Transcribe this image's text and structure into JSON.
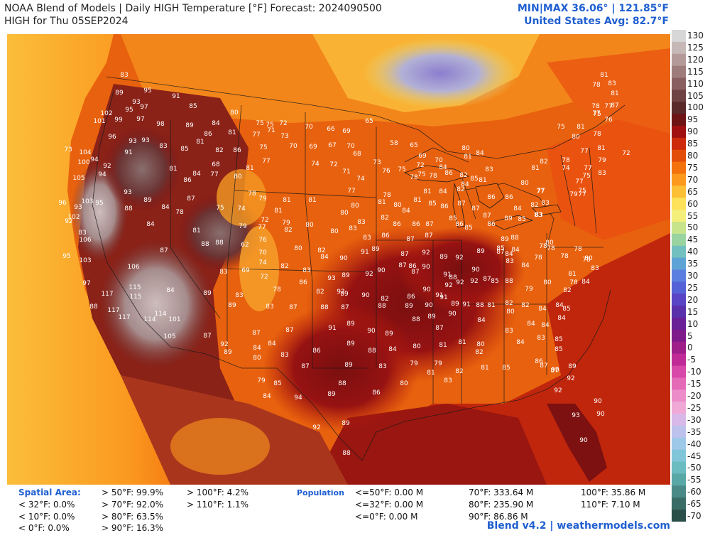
{
  "header": {
    "title_line1": "NOAA Blend of Models | Daily HIGH Temperature [°F] Forecast: 2024090500",
    "title_line2": "HIGH for Thu 05SEP2024",
    "minmax": "MIN|MAX 36.06° | 121.85°F",
    "us_avg": "United States Avg: 82.7°F"
  },
  "colorbar": {
    "labels": [
      "130",
      "125",
      "120",
      "115",
      "110",
      "105",
      "100",
      "95",
      "90",
      "85",
      "80",
      "75",
      "70",
      "65",
      "60",
      "55",
      "50",
      "45",
      "40",
      "35",
      "30",
      "25",
      "20",
      "15",
      "10",
      "5",
      "0",
      "-5",
      "-10",
      "-15",
      "-20",
      "-25",
      "-30",
      "-35",
      "-40",
      "-45",
      "-50",
      "-55",
      "-60",
      "-65",
      "-70"
    ],
    "colors": [
      "#d7d7d7",
      "#c7b8b8",
      "#b59a9a",
      "#9e7c7c",
      "#8a5f5f",
      "#6f4343",
      "#5a2a2a",
      "#6e1414",
      "#a01010",
      "#cc2a0a",
      "#e34d0a",
      "#f4720e",
      "#fb9a1e",
      "#fcc036",
      "#fce15a",
      "#f3ef7a",
      "#c8e48a",
      "#98d3a0",
      "#72c0c0",
      "#5ea3d6",
      "#5a7fe0",
      "#5561d6",
      "#5844c4",
      "#5a2faa",
      "#6a2096",
      "#7e1a8a",
      "#a01e8a",
      "#c02a96",
      "#d848a8",
      "#e46ab8",
      "#ec8cc8",
      "#f0a8d6",
      "#d8b8e8",
      "#bcc2ec",
      "#9ec8e8",
      "#80c6d8",
      "#6abcc0",
      "#5aa8a6",
      "#4a8a86",
      "#3a6c66",
      "#2a4e48"
    ]
  },
  "stats": {
    "spatial_label": "Spatial Area:",
    "population_label": "Population",
    "spatial": [
      "< 32°F: 0.0%",
      "< 10°F: 0.0%",
      "< 0°F: 0.0%",
      "> 50°F: 99.9%",
      "> 70°F: 92.0%",
      "> 80°F: 63.5%",
      "> 90°F: 16.3%",
      "> 100°F: 4.2%",
      "> 110°F: 1.1%"
    ],
    "population": [
      "<=50°F: 0.00 M",
      "<=32°F: 0.00 M",
      "<=0°F: 0.00 M",
      "70°F: 333.64 M",
      "80°F: 235.90 M",
      "90°F: 86.86 M",
      "100°F: 35.86 M",
      "110°F: 7.10 M"
    ]
  },
  "footer": "Blend v4.2 | weathermodels.com",
  "map_labels": [
    [
      "83",
      175,
      108
    ],
    [
      "95",
      208,
      130
    ],
    [
      "93",
      192,
      146
    ],
    [
      "89",
      168,
      133
    ],
    [
      "91",
      248,
      138
    ],
    [
      "85",
      272,
      152
    ],
    [
      "80",
      330,
      161
    ],
    [
      "95",
      182,
      157
    ],
    [
      "97",
      203,
      153
    ],
    [
      "102",
      150,
      162
    ],
    [
      "101",
      140,
      173
    ],
    [
      "99",
      167,
      171
    ],
    [
      "97",
      198,
      170
    ],
    [
      "98",
      226,
      177
    ],
    [
      "96",
      158,
      195
    ],
    [
      "93",
      187,
      201
    ],
    [
      "93",
      205,
      200
    ],
    [
      "91",
      181,
      217
    ],
    [
      "83",
      230,
      208
    ],
    [
      "85",
      260,
      212
    ],
    [
      "89",
      267,
      179
    ],
    [
      "86",
      293,
      191
    ],
    [
      "81",
      282,
      202
    ],
    [
      "84",
      304,
      176
    ],
    [
      "81",
      327,
      189
    ],
    [
      "75",
      366,
      176
    ],
    [
      "75",
      380,
      178
    ],
    [
      "72",
      399,
      176
    ],
    [
      "71",
      382,
      186
    ],
    [
      "70",
      435,
      181
    ],
    [
      "66",
      466,
      184
    ],
    [
      "69",
      488,
      187
    ],
    [
      "77",
      361,
      192
    ],
    [
      "73",
      401,
      194
    ],
    [
      "82",
      309,
      214
    ],
    [
      "86",
      334,
      214
    ],
    [
      "75",
      371,
      210
    ],
    [
      "70",
      413,
      208
    ],
    [
      "69",
      441,
      209
    ],
    [
      "67",
      468,
      207
    ],
    [
      "70",
      494,
      208
    ],
    [
      "68",
      503,
      219
    ],
    [
      "65",
      520,
      173
    ],
    [
      "58",
      555,
      204
    ],
    [
      "65",
      583,
      207
    ],
    [
      "73",
      96,
      213
    ],
    [
      "104",
      120,
      217
    ],
    [
      "100",
      118,
      231
    ],
    [
      "94",
      133,
      227
    ],
    [
      "92",
      151,
      236
    ],
    [
      "94",
      144,
      248
    ],
    [
      "105",
      111,
      253
    ],
    [
      "81",
      244,
      240
    ],
    [
      "84",
      277,
      247
    ],
    [
      "77",
      302,
      248
    ],
    [
      "68",
      304,
      234
    ],
    [
      "80",
      335,
      251
    ],
    [
      "81",
      352,
      239
    ],
    [
      "77",
      375,
      229
    ],
    [
      "74",
      444,
      233
    ],
    [
      "72",
      470,
      234
    ],
    [
      "71",
      488,
      244
    ],
    [
      "74",
      508,
      254
    ],
    [
      "73",
      531,
      231
    ],
    [
      "76",
      544,
      243
    ],
    [
      "75",
      566,
      241
    ],
    [
      "72",
      592,
      235
    ],
    [
      "75",
      594,
      248
    ],
    [
      "69",
      595,
      222
    ],
    [
      "78",
      583,
      252
    ],
    [
      "70",
      618,
      228
    ],
    [
      "96",
      88,
      288
    ],
    [
      "93",
      110,
      294
    ],
    [
      "103",
      123,
      286
    ],
    [
      "95",
      140,
      288
    ],
    [
      "102",
      104,
      308
    ],
    [
      "92",
      97,
      314
    ],
    [
      "93",
      180,
      273
    ],
    [
      "89",
      208,
      284
    ],
    [
      "88",
      181,
      296
    ],
    [
      "84",
      233,
      294
    ],
    [
      "86",
      264,
      256
    ],
    [
      "87",
      269,
      282
    ],
    [
      "84",
      212,
      318
    ],
    [
      "78",
      253,
      301
    ],
    [
      "75",
      310,
      295
    ],
    [
      "74",
      340,
      296
    ],
    [
      "78",
      355,
      275
    ],
    [
      "79",
      370,
      282
    ],
    [
      "81",
      404,
      284
    ],
    [
      "81",
      440,
      284
    ],
    [
      "77",
      495,
      271
    ],
    [
      "80",
      485,
      302
    ],
    [
      "80",
      500,
      292
    ],
    [
      "78",
      545,
      277
    ],
    [
      "81",
      602,
      272
    ],
    [
      "84",
      624,
      272
    ],
    [
      "82",
      649,
      269
    ],
    [
      "84",
      655,
      262
    ],
    [
      "85",
      668,
      254
    ],
    [
      "81",
      680,
      256
    ],
    [
      "83",
      689,
      241
    ],
    [
      "80",
      656,
      211
    ],
    [
      "84",
      676,
      218
    ],
    [
      "81",
      659,
      223
    ],
    [
      "82",
      653,
      249
    ],
    [
      "84",
      624,
      238
    ],
    [
      "86",
      632,
      246
    ],
    [
      "78",
      610,
      250
    ],
    [
      "81",
      538,
      287
    ],
    [
      "80",
      560,
      291
    ],
    [
      "84",
      572,
      299
    ],
    [
      "81",
      588,
      284
    ],
    [
      "85",
      609,
      289
    ],
    [
      "86",
      626,
      293
    ],
    [
      "87",
      650,
      289
    ],
    [
      "87",
      670,
      296
    ],
    [
      "86",
      692,
      280
    ],
    [
      "86",
      717,
      280
    ],
    [
      "84",
      729,
      296
    ],
    [
      "82",
      753,
      291
    ],
    [
      "83",
      758,
      305
    ],
    [
      "81",
      754,
      239
    ],
    [
      "82",
      766,
      230
    ],
    [
      "78",
      797,
      228
    ],
    [
      "74",
      797,
      239
    ],
    [
      "80",
      739,
      260
    ],
    [
      "77",
      761,
      272
    ],
    [
      "77",
      762,
      271
    ],
    [
      "83",
      116,
      330
    ],
    [
      "106",
      120,
      340
    ],
    [
      "81",
      277,
      327
    ],
    [
      "88",
      289,
      346
    ],
    [
      "88",
      309,
      344
    ],
    [
      "79",
      342,
      321
    ],
    [
      "62",
      345,
      347
    ],
    [
      "77",
      369,
      322
    ],
    [
      "72",
      373,
      312
    ],
    [
      "79",
      403,
      316
    ],
    [
      "82",
      406,
      326
    ],
    [
      "81",
      392,
      299
    ],
    [
      "80",
      436,
      319
    ],
    [
      "80",
      471,
      328
    ],
    [
      "83",
      497,
      324
    ],
    [
      "83",
      509,
      315
    ],
    [
      "82",
      542,
      309
    ],
    [
      "83",
      517,
      337
    ],
    [
      "86",
      543,
      334
    ],
    [
      "87",
      578,
      339
    ],
    [
      "87",
      604,
      334
    ],
    [
      "86",
      559,
      318
    ],
    [
      "86",
      586,
      318
    ],
    [
      "87",
      605,
      318
    ],
    [
      "85",
      638,
      310
    ],
    [
      "86",
      647,
      318
    ],
    [
      "85",
      660,
      323
    ],
    [
      "87",
      686,
      306
    ],
    [
      "86",
      692,
      318
    ],
    [
      "89",
      716,
      310
    ],
    [
      "85",
      735,
      311
    ],
    [
      "83",
      759,
      305
    ],
    [
      "89",
      711,
      339
    ],
    [
      "88",
      725,
      337
    ],
    [
      "95",
      94,
      363
    ],
    [
      "103",
      120,
      369
    ],
    [
      "87",
      231,
      355
    ],
    [
      "83",
      315,
      385
    ],
    [
      "76",
      370,
      340
    ],
    [
      "70",
      370,
      358
    ],
    [
      "74",
      370,
      372
    ],
    [
      "69",
      346,
      383
    ],
    [
      "72",
      372,
      392
    ],
    [
      "82",
      401,
      377
    ],
    [
      "80",
      420,
      352
    ],
    [
      "82",
      453,
      355
    ],
    [
      "84",
      457,
      364
    ],
    [
      "90",
      484,
      366
    ],
    [
      "91",
      514,
      357
    ],
    [
      "89",
      529,
      353
    ],
    [
      "87",
      570,
      360
    ],
    [
      "92",
      600,
      358
    ],
    [
      "89",
      625,
      364
    ],
    [
      "92",
      647,
      365
    ],
    [
      "90",
      670,
      382
    ],
    [
      "89",
      677,
      356
    ],
    [
      "87",
      705,
      357
    ],
    [
      "85",
      705,
      352
    ],
    [
      "84",
      717,
      360
    ],
    [
      "84",
      726,
      354
    ],
    [
      "83",
      718,
      370
    ],
    [
      "84",
      740,
      376
    ],
    [
      "78",
      758,
      365
    ],
    [
      "78",
      765,
      349
    ],
    [
      "80",
      774,
      344
    ],
    [
      "78",
      776,
      352
    ],
    [
      "78",
      795,
      363
    ],
    [
      "78",
      814,
      353
    ],
    [
      "78",
      826,
      368
    ],
    [
      "80",
      829,
      366
    ],
    [
      "83",
      838,
      380
    ],
    [
      "97",
      122,
      401
    ],
    [
      "106",
      188,
      378
    ],
    [
      "115",
      190,
      407
    ],
    [
      "115",
      191,
      420
    ],
    [
      "117",
      151,
      416
    ],
    [
      "88",
      132,
      434
    ],
    [
      "117",
      160,
      439
    ],
    [
      "117",
      175,
      449
    ],
    [
      "114",
      226,
      444
    ],
    [
      "114",
      211,
      452
    ],
    [
      "101",
      246,
      452
    ],
    [
      "105",
      239,
      476
    ],
    [
      "84",
      240,
      411
    ],
    [
      "89",
      292,
      415
    ],
    [
      "89",
      327,
      432
    ],
    [
      "83",
      337,
      418
    ],
    [
      "78",
      390,
      410
    ],
    [
      "83",
      380,
      434
    ],
    [
      "87",
      413,
      435
    ],
    [
      "83",
      432,
      383
    ],
    [
      "93",
      467,
      394
    ],
    [
      "86",
      427,
      400
    ],
    [
      "89",
      487,
      390
    ],
    [
      "92",
      520,
      388
    ],
    [
      "90",
      537,
      383
    ],
    [
      "87",
      567,
      376
    ],
    [
      "86",
      581,
      377
    ],
    [
      "90",
      600,
      378
    ],
    [
      "87",
      585,
      385
    ],
    [
      "91",
      630,
      389
    ],
    [
      "88",
      638,
      393
    ],
    [
      "92",
      648,
      400
    ],
    [
      "92",
      668,
      398
    ],
    [
      "87",
      686,
      395
    ],
    [
      "85",
      697,
      398
    ],
    [
      "88",
      717,
      398
    ],
    [
      "80",
      771,
      400
    ],
    [
      "81",
      806,
      388
    ],
    [
      "78",
      808,
      400
    ],
    [
      "82",
      799,
      411
    ],
    [
      "84",
      825,
      399
    ],
    [
      "82",
      451,
      413
    ],
    [
      "89",
      485,
      416
    ],
    [
      "92",
      480,
      413
    ],
    [
      "90",
      515,
      418
    ],
    [
      "82",
      542,
      423
    ],
    [
      "86",
      579,
      420
    ],
    [
      "90",
      601,
      410
    ],
    [
      "91",
      619,
      418
    ],
    [
      "91",
      625,
      421
    ],
    [
      "89",
      641,
      430
    ],
    [
      "92",
      632,
      404
    ],
    [
      "88",
      538,
      433
    ],
    [
      "88",
      457,
      435
    ],
    [
      "87",
      486,
      435
    ],
    [
      "89",
      576,
      433
    ],
    [
      "90",
      604,
      432
    ],
    [
      "91",
      657,
      431
    ],
    [
      "88",
      676,
      432
    ],
    [
      "81",
      692,
      432
    ],
    [
      "82",
      717,
      429
    ],
    [
      "82",
      740,
      432
    ],
    [
      "84",
      764,
      437
    ],
    [
      "84",
      788,
      432
    ],
    [
      "85",
      798,
      437
    ],
    [
      "79",
      745,
      409
    ],
    [
      "80",
      719,
      441
    ],
    [
      "87",
      361,
      471
    ],
    [
      "87",
      408,
      467
    ],
    [
      "91",
      468,
      464
    ],
    [
      "89",
      494,
      458
    ],
    [
      "90",
      523,
      468
    ],
    [
      "89",
      548,
      472
    ],
    [
      "88",
      586,
      452
    ],
    [
      "89",
      608,
      448
    ],
    [
      "90",
      637,
      444
    ],
    [
      "87",
      619,
      464
    ],
    [
      "84",
      678,
      453
    ],
    [
      "83",
      717,
      468
    ],
    [
      "84",
      748,
      458
    ],
    [
      "84",
      768,
      460
    ],
    [
      "84",
      791,
      450
    ],
    [
      "83",
      762,
      478
    ],
    [
      "85",
      787,
      480
    ],
    [
      "84",
      383,
      486
    ],
    [
      "84",
      362,
      492
    ],
    [
      "92",
      316,
      487
    ],
    [
      "87",
      292,
      475
    ],
    [
      "89",
      321,
      498
    ],
    [
      "80",
      362,
      506
    ],
    [
      "83",
      401,
      502
    ],
    [
      "86",
      446,
      496
    ],
    [
      "89",
      494,
      486
    ],
    [
      "88",
      524,
      496
    ],
    [
      "84",
      553,
      494
    ],
    [
      "80",
      587,
      490
    ],
    [
      "81",
      624,
      488
    ],
    [
      "81",
      651,
      484
    ],
    [
      "80",
      677,
      487
    ],
    [
      "84",
      733,
      484
    ],
    [
      "85",
      787,
      494
    ],
    [
      "86",
      759,
      511
    ],
    [
      "87",
      766,
      517
    ],
    [
      "87",
      781,
      524
    ],
    [
      "90",
      782,
      523
    ],
    [
      "89",
      806,
      518
    ],
    [
      "92",
      804,
      535
    ],
    [
      "82",
      647,
      525
    ],
    [
      "81",
      683,
      520
    ],
    [
      "85",
      713,
      520
    ],
    [
      "81",
      607,
      527
    ],
    [
      "79",
      617,
      514
    ],
    [
      "83",
      631,
      538
    ],
    [
      "82",
      675,
      498
    ],
    [
      "83",
      539,
      518
    ],
    [
      "87",
      430,
      518
    ],
    [
      "89",
      491,
      516
    ],
    [
      "79",
      583,
      514
    ],
    [
      "79",
      368,
      538
    ],
    [
      "85",
      391,
      542
    ],
    [
      "84",
      376,
      560
    ],
    [
      "94",
      420,
      562
    ],
    [
      "89",
      467,
      557
    ],
    [
      "88",
      482,
      542
    ],
    [
      "86",
      530,
      555
    ],
    [
      "80",
      569,
      542
    ],
    [
      "92",
      786,
      552
    ],
    [
      "90",
      842,
      567
    ],
    [
      "93",
      811,
      587
    ],
    [
      "90",
      846,
      585
    ],
    [
      "92",
      446,
      604
    ],
    [
      "89",
      487,
      598
    ],
    [
      "88",
      488,
      640
    ],
    [
      "90",
      822,
      622
    ],
    [
      "83",
      848,
      246
    ],
    [
      "77",
      828,
      239
    ],
    [
      "75",
      826,
      250
    ],
    [
      "81",
      847,
      211
    ],
    [
      "79",
      848,
      228
    ],
    [
      "77",
      816,
      258
    ],
    [
      "79",
      808,
      276
    ],
    [
      "77",
      820,
      276
    ],
    [
      "83",
      768,
      288
    ],
    [
      "80",
      811,
      195
    ],
    [
      "81",
      818,
      181
    ],
    [
      "78",
      841,
      191
    ],
    [
      "77",
      823,
      215
    ],
    [
      "75",
      820,
      271
    ],
    [
      "72",
      882,
      218
    ],
    [
      "76",
      857,
      171
    ],
    [
      "77",
      857,
      152
    ],
    [
      "78",
      839,
      152
    ],
    [
      "77",
      840,
      162
    ],
    [
      "78",
      840,
      122
    ],
    [
      "81",
      851,
      108
    ],
    [
      "83",
      862,
      120
    ],
    [
      "81",
      866,
      134
    ],
    [
      "87",
      866,
      151
    ],
    [
      "75",
      841,
      163
    ],
    [
      "75",
      790,
      181
    ]
  ]
}
